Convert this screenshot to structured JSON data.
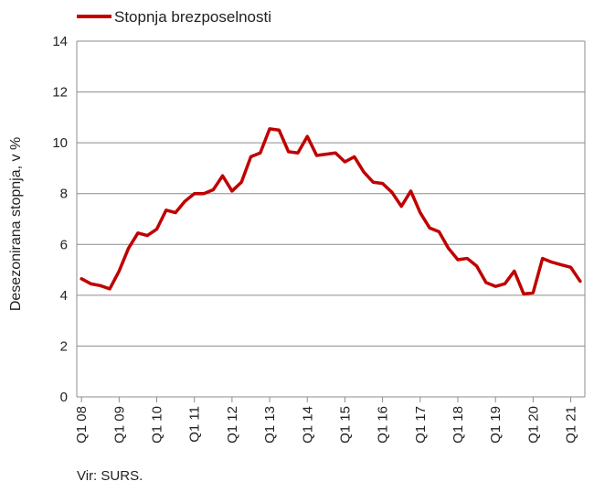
{
  "chart_data": {
    "type": "line",
    "ylabel": "Desezonirana stopnja, v %",
    "ylim": [
      0,
      14
    ],
    "yticks": [
      "0",
      "2",
      "4",
      "6",
      "8",
      "10",
      "12",
      "14"
    ],
    "xtick_labels": [
      "Q1 08",
      "Q1 09",
      "Q1 10",
      "Q1 11",
      "Q1 12",
      "Q1 13",
      "Q1 14",
      "Q1 15",
      "Q1 16",
      "Q1 17",
      "Q1 18",
      "Q1 19",
      "Q1 20",
      "Q1 21"
    ],
    "grid": "horizontal",
    "legend_position": "top-left",
    "series": [
      {
        "name": "Stopnja brezposelnosti",
        "color": "#c00000",
        "x": [
          "Q1 08",
          "Q2 08",
          "Q3 08",
          "Q4 08",
          "Q1 09",
          "Q2 09",
          "Q3 09",
          "Q4 09",
          "Q1 10",
          "Q2 10",
          "Q3 10",
          "Q4 10",
          "Q1 11",
          "Q2 11",
          "Q3 11",
          "Q4 11",
          "Q1 12",
          "Q2 12",
          "Q3 12",
          "Q4 12",
          "Q1 13",
          "Q2 13",
          "Q3 13",
          "Q4 13",
          "Q1 14",
          "Q2 14",
          "Q3 14",
          "Q4 14",
          "Q1 15",
          "Q2 15",
          "Q3 15",
          "Q4 15",
          "Q1 16",
          "Q2 16",
          "Q3 16",
          "Q4 16",
          "Q1 17",
          "Q2 17",
          "Q3 17",
          "Q4 17",
          "Q1 18",
          "Q2 18",
          "Q3 18",
          "Q4 18",
          "Q1 19",
          "Q2 19",
          "Q3 19",
          "Q4 19",
          "Q1 20",
          "Q2 20",
          "Q3 20",
          "Q4 20",
          "Q1 21",
          "Q2 21"
        ],
        "values": [
          4.65,
          4.45,
          4.38,
          4.25,
          4.95,
          5.85,
          6.45,
          6.35,
          6.6,
          7.35,
          7.25,
          7.7,
          8.0,
          8.0,
          8.15,
          8.7,
          8.1,
          8.45,
          9.45,
          9.6,
          10.55,
          10.5,
          9.65,
          9.6,
          10.25,
          9.5,
          9.55,
          9.6,
          9.25,
          9.45,
          8.85,
          8.45,
          8.4,
          8.05,
          7.5,
          8.1,
          7.25,
          6.65,
          6.5,
          5.85,
          5.4,
          5.45,
          5.15,
          4.5,
          4.35,
          4.45,
          4.95,
          4.05,
          4.1,
          5.45,
          5.3,
          5.2,
          5.1,
          4.55
        ]
      }
    ],
    "source": "Vir: SURS."
  }
}
